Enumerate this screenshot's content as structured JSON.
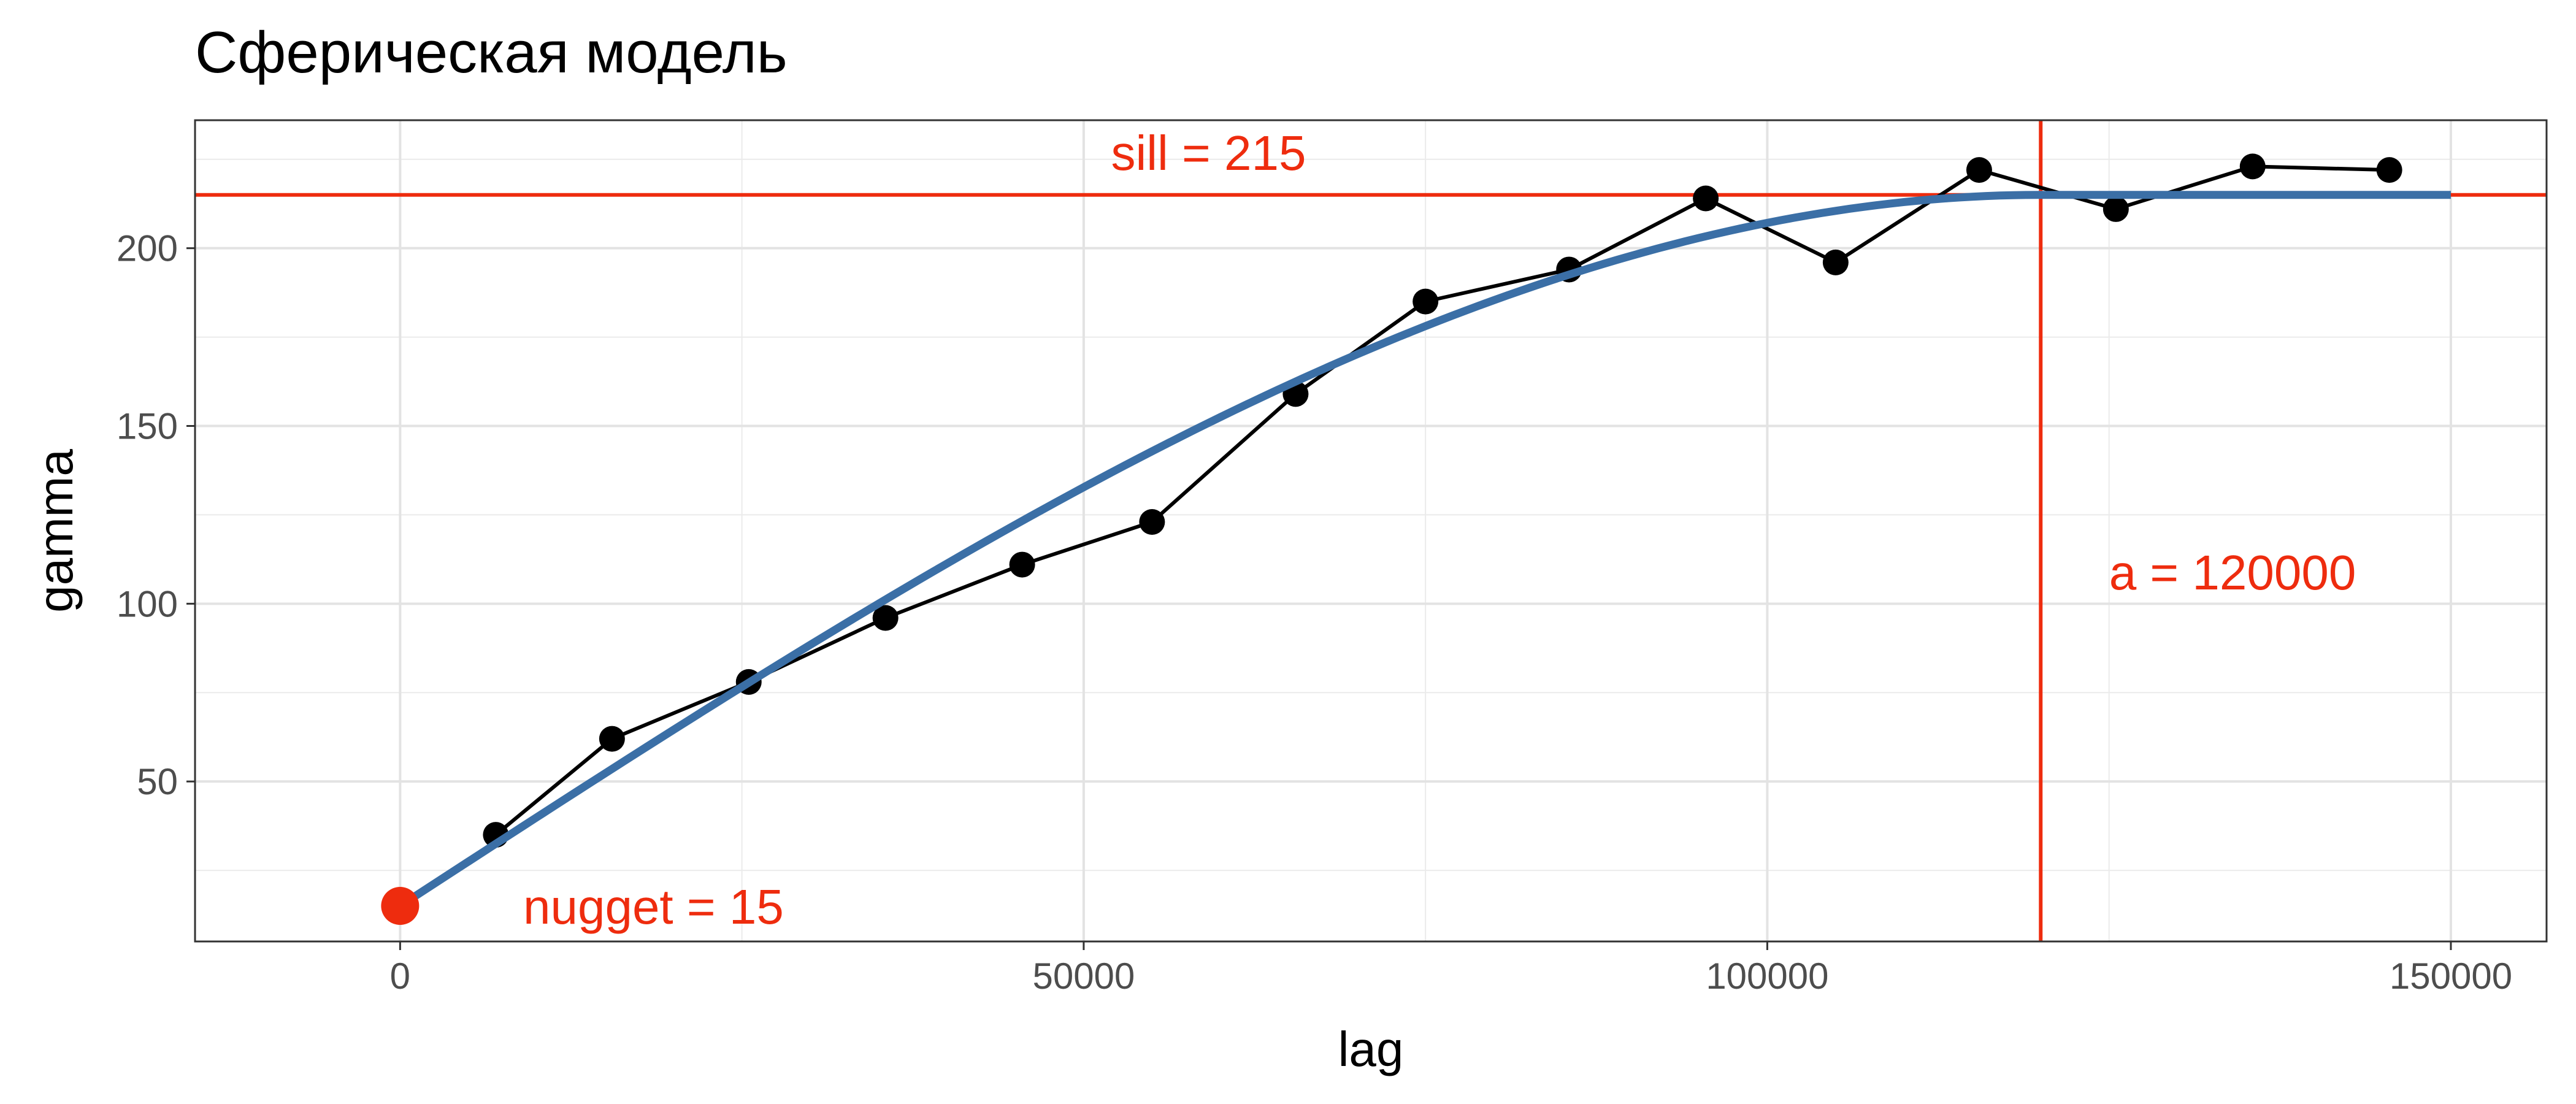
{
  "chart_data": {
    "type": "line",
    "title": "Сферическая модель",
    "xlabel": "lag",
    "ylabel": "gamma",
    "xlim": [
      -15000,
      157000
    ],
    "ylim": [
      5,
      236
    ],
    "x_ticks": [
      0,
      50000,
      100000,
      150000
    ],
    "x_tick_labels": [
      "0",
      "50000",
      "100000",
      "150000"
    ],
    "y_ticks": [
      50,
      100,
      150,
      200
    ],
    "y_tick_labels": [
      "50",
      "100",
      "150",
      "200"
    ],
    "grid": true,
    "series": [
      {
        "kind": "empirical",
        "style": "points+line",
        "color": "#000000",
        "x": [
          7000,
          15500,
          25500,
          35500,
          45500,
          55000,
          65500,
          75000,
          85500,
          95500,
          105000,
          115500,
          125500,
          135500,
          145500
        ],
        "y": [
          35,
          62,
          78,
          96,
          111,
          123,
          159,
          185,
          194,
          214,
          196,
          222,
          211,
          223,
          222
        ]
      },
      {
        "kind": "model",
        "style": "line",
        "color": "#3b6fa6",
        "model": "spherical",
        "nugget": 15,
        "sill": 215,
        "range": 120000,
        "x_range": [
          0,
          150000
        ]
      }
    ],
    "reference_lines": [
      {
        "orientation": "horizontal",
        "value": 215,
        "color": "#ee2c0e"
      },
      {
        "orientation": "vertical",
        "value": 120000,
        "color": "#ee2c0e"
      }
    ],
    "highlight_point": {
      "x": 0,
      "y": 15,
      "color": "#ee2c0e"
    },
    "annotations": [
      {
        "id": "sill",
        "text": "sill = 215",
        "x": 52000,
        "y": 222,
        "color": "#ee2c0e"
      },
      {
        "id": "range",
        "text": "a = 120000",
        "x": 125000,
        "y": 104,
        "color": "#ee2c0e"
      },
      {
        "id": "nugget",
        "text": "nugget = 15",
        "x": 9000,
        "y": 10,
        "color": "#ee2c0e"
      }
    ]
  }
}
